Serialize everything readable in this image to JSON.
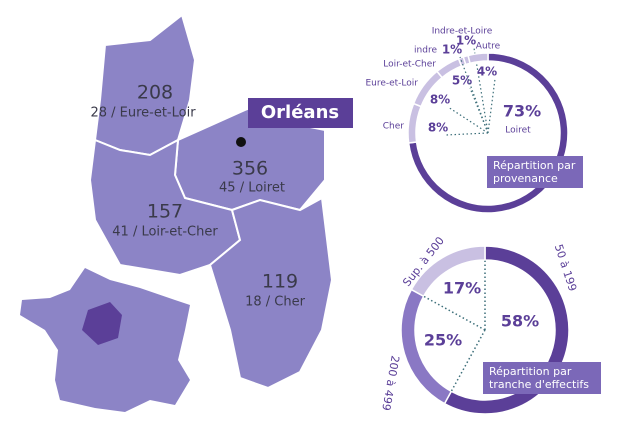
{
  "map": {
    "city": "Orléans",
    "departments": [
      {
        "count": 208,
        "label": "28 / Eure-et-Loir"
      },
      {
        "count": 356,
        "label": "45 / Loiret"
      },
      {
        "count": 157,
        "label": "41 / Loir-et-Cher"
      },
      {
        "count": 119,
        "label": "18 / Cher"
      }
    ]
  },
  "chart_data": [
    {
      "type": "pie",
      "title": "Répartition par provenance",
      "categories": [
        "Loiret",
        "Cher",
        "Eure-et-Loir",
        "Loir-et-Cher",
        "indre",
        "Indre-et-Loire",
        "Autre"
      ],
      "values": [
        73,
        8,
        8,
        5,
        1,
        1,
        4
      ],
      "value_labels": [
        "73%",
        "8%",
        "8%",
        "5%",
        "1%",
        "1%",
        "4%"
      ],
      "colors": [
        "#5b3f98",
        "#c9c0e2",
        "#c9c0e2",
        "#c9c0e2",
        "#c9c0e2",
        "#c9c0e2",
        "#c9c0e2"
      ]
    },
    {
      "type": "pie",
      "title": "Répartition par tranche d'effectifs",
      "categories": [
        "50 à 199",
        "200 à 499",
        "Sup. à 500"
      ],
      "values": [
        58,
        25,
        17
      ],
      "value_labels": [
        "58%",
        "25%",
        "17%"
      ],
      "colors": [
        "#5b3f98",
        "#8a78c4",
        "#c9c0e2"
      ]
    }
  ]
}
